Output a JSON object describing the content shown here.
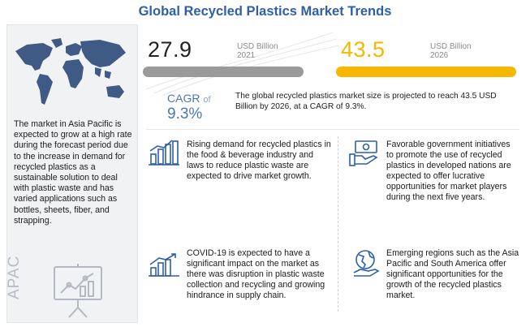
{
  "title": "Global Recycled Plastics Market Trends",
  "left": {
    "text": "The market in Asia Pacific is expected to grow at a high rate during the forecast period due to the increase in demand for recycled plastics as a sustainable solution to deal with plastic waste and has varied applications such as bottles, sheets, fiber, and strapping.",
    "region_label": "APAC"
  },
  "stats": {
    "value_2021": "27.9",
    "unit_2021": "USD Billion",
    "year_2021": "2021",
    "value_2026": "43.5",
    "unit_2026": "USD Billion",
    "year_2026": "2026",
    "cagr_label": "CAGR",
    "cagr_of": "of",
    "cagr_value": "9.3%",
    "description": "The global recycled plastics market size is projected to reach 43.5 USD Billion by 2026, at a CAGR of 9.3%."
  },
  "cards": [
    {
      "icon": "bar-chart-growth-icon",
      "text": "Rising demand for recycled plastics in the food & beverage industry and laws to reduce plastic waste are expected to drive market growth."
    },
    {
      "icon": "money-hand-icon",
      "text": "Favorable government initiatives to promote the use of recycled plastics in developed nations are expected to offer lucrative opportunities for market players during the next five years."
    },
    {
      "icon": "rising-bar-chart-icon",
      "text": "COVID-19 is expected to have a significant impact on the market as there was disruption in plastic waste collection and recycling and growing hindrance in supply chain."
    },
    {
      "icon": "globe-hand-icon",
      "text": "Emerging regions such as the Asia Pacific and South America offer significant opportunities for the growth of the recycled plastics market."
    }
  ],
  "colors": {
    "title": "#2f5fa8",
    "bar_2021": "#9a9a9a",
    "bar_2026": "#f5b700",
    "cagr": "#4a78b5",
    "icon": "#2f5fa8"
  }
}
